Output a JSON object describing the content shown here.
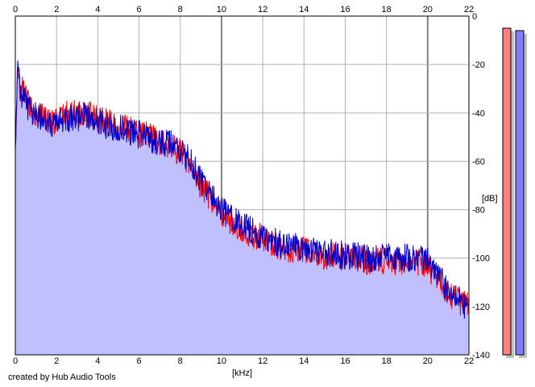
{
  "chart_data": {
    "type": "line",
    "title": "",
    "xlabel": "[kHz]",
    "ylabel": "[dB]",
    "xlim": [
      0,
      22
    ],
    "ylim": [
      -140,
      0
    ],
    "x_ticks": [
      0,
      2,
      4,
      6,
      8,
      10,
      12,
      14,
      16,
      18,
      20,
      22
    ],
    "y_ticks": [
      0,
      -20,
      -40,
      -60,
      -80,
      -100,
      -120,
      -140
    ],
    "grid": true,
    "area_fill_color": "#c0c0ff",
    "series": [
      {
        "color": "#ff0000",
        "x": [
          0,
          0.1,
          0.3,
          0.6,
          1.0,
          1.5,
          2.0,
          2.5,
          3.0,
          3.5,
          4.0,
          4.5,
          5.0,
          5.5,
          6.0,
          6.5,
          7.0,
          7.5,
          8.0,
          8.5,
          9.0,
          9.5,
          10.0,
          10.5,
          11.0,
          11.5,
          12.0,
          12.5,
          13.0,
          13.5,
          14.0,
          14.5,
          15.0,
          15.5,
          16.0,
          16.5,
          17.0,
          17.5,
          18.0,
          18.5,
          19.0,
          19.5,
          20.0,
          20.5,
          21.0,
          21.5,
          22.0
        ],
        "y": [
          -55,
          -25,
          -30,
          -35,
          -40,
          -42,
          -44,
          -40,
          -41,
          -40,
          -43,
          -44,
          -45,
          -47,
          -48,
          -50,
          -52,
          -54,
          -56,
          -62,
          -70,
          -76,
          -82,
          -85,
          -88,
          -90,
          -92,
          -94,
          -96,
          -96,
          -97,
          -98,
          -99,
          -99,
          -100,
          -100,
          -101,
          -101,
          -101,
          -101,
          -102,
          -102,
          -103,
          -110,
          -115,
          -118,
          -120
        ]
      },
      {
        "color": "#0000cc",
        "x": [
          0,
          0.1,
          0.3,
          0.6,
          1.0,
          1.5,
          2.0,
          2.5,
          3.0,
          3.5,
          4.0,
          4.5,
          5.0,
          5.5,
          6.0,
          6.5,
          7.0,
          7.5,
          8.0,
          8.5,
          9.0,
          9.5,
          10.0,
          10.5,
          11.0,
          11.5,
          12.0,
          12.5,
          13.0,
          13.5,
          14.0,
          14.5,
          15.0,
          15.5,
          16.0,
          16.5,
          17.0,
          17.5,
          18.0,
          18.5,
          19.0,
          19.5,
          20.0,
          20.5,
          21.0,
          21.5,
          22.0
        ],
        "y": [
          -60,
          -22,
          -32,
          -37,
          -41,
          -43,
          -45,
          -42,
          -42,
          -41,
          -44,
          -45,
          -46,
          -48,
          -49,
          -51,
          -52,
          -53,
          -55,
          -60,
          -68,
          -74,
          -80,
          -84,
          -87,
          -89,
          -91,
          -93,
          -95,
          -95,
          -96,
          -97,
          -98,
          -98,
          -99,
          -99,
          -100,
          -100,
          -100,
          -100,
          -100,
          -100,
          -100,
          -108,
          -113,
          -117,
          -121
        ]
      }
    ],
    "side_meters": [
      {
        "color": "#ff8080",
        "level_db": -5
      },
      {
        "color": "#8080ff",
        "level_db": -6
      }
    ]
  },
  "footer_text": "created by Hub Audio Tools"
}
